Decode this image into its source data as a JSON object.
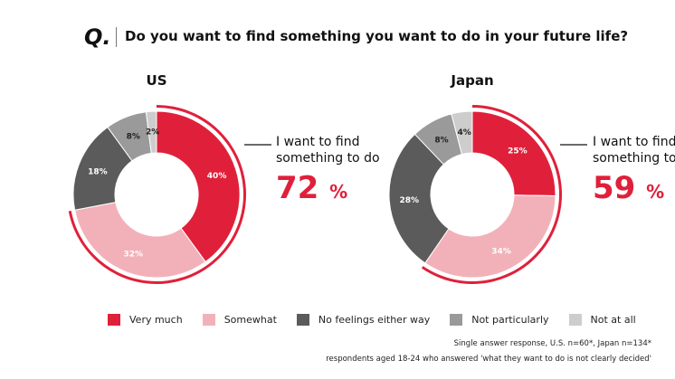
{
  "header": {
    "q_mark": "Q.",
    "question": "Do you want to find something you want to do in your future life?"
  },
  "colors": {
    "Very much": "#e0203a",
    "Somewhat": "#f2b1b9",
    "No feelings either way": "#5b5b5b",
    "Not particularly": "#9a9a9a",
    "Not at all": "#cdcdcd"
  },
  "chart_data": [
    {
      "type": "pie",
      "title": "US",
      "categories": [
        "Very much",
        "Somewhat",
        "No feelings either way",
        "Not particularly",
        "Not at all"
      ],
      "values": [
        40,
        32,
        18,
        8,
        2
      ],
      "labels": [
        "40%",
        "32%",
        "18%",
        "8%",
        "2%"
      ],
      "callout": {
        "text1": "I want to find",
        "text2": "something to do",
        "value": "72",
        "unit": "%"
      }
    },
    {
      "type": "pie",
      "title": "Japan",
      "categories": [
        "Very much",
        "Somewhat",
        "No feelings either way",
        "Not particularly",
        "Not at all"
      ],
      "values": [
        25,
        34,
        28,
        8,
        4
      ],
      "labels": [
        "25%",
        "34%",
        "28%",
        "8%",
        "4%"
      ],
      "callout": {
        "text1": "I want to find",
        "text2": "something to do",
        "value": "59",
        "unit": "%"
      }
    }
  ],
  "legend": [
    "Very much",
    "Somewhat",
    "No feelings either way",
    "Not particularly",
    "Not at all"
  ],
  "notes": [
    "Single answer response, U.S. n=60*, Japan n=134*",
    "respondents aged 18-24 who answered 'what they want to do is not clearly decided'"
  ]
}
